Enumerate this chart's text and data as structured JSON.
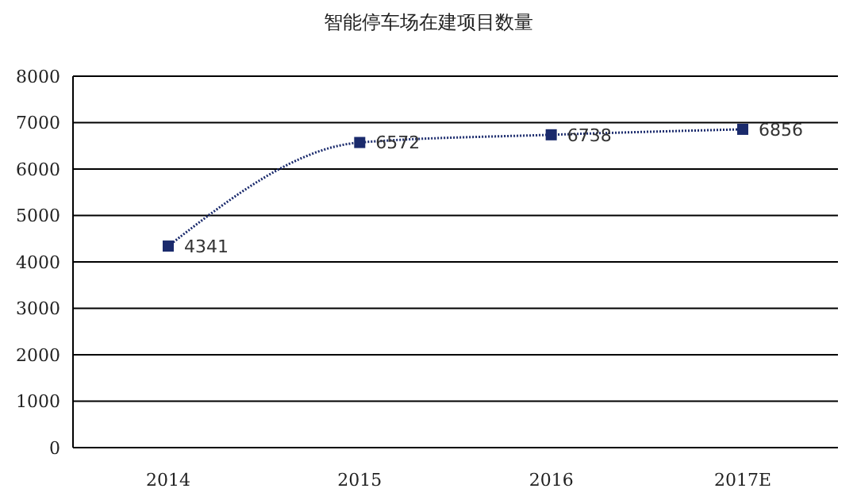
{
  "chart_data": {
    "type": "line",
    "title": "智能停车场在建项目数量",
    "categories": [
      "2014",
      "2015",
      "2016",
      "2017E"
    ],
    "series": [
      {
        "color": "#1a2a6c",
        "values": [
          4341,
          6572,
          6738,
          6856
        ]
      }
    ],
    "ylim": [
      0,
      8000
    ],
    "yticks": [
      0,
      1000,
      2000,
      3000,
      4000,
      5000,
      6000,
      7000,
      8000
    ],
    "grid": "y",
    "marker": "square",
    "line_style": "dotted",
    "data_labels": true,
    "legend": false
  }
}
